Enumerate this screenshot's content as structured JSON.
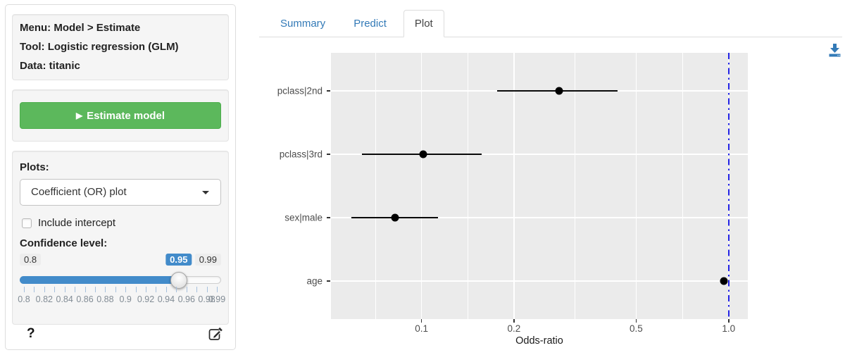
{
  "colors": {
    "accent_blue": "#428bca",
    "link_blue": "#337ab7",
    "success_green": "#5cb85c",
    "panel_bg": "#ebebeb",
    "gridline": "#ffffff",
    "reference_line_blue": "#2323e6",
    "point_black": "#000000"
  },
  "icons": {
    "play": "▶",
    "help": "?",
    "edit": "pencil-square-icon",
    "download": "download-tray-icon",
    "caret": "caret-down-icon"
  },
  "sidebar": {
    "info": {
      "menu": "Menu: Model > Estimate",
      "tool": "Tool: Logistic regression (GLM)",
      "data": "Data: titanic"
    },
    "estimate_button_label": "Estimate model",
    "plots_label": "Plots:",
    "plot_select_value": "Coefficient (OR) plot",
    "include_intercept_label": "Include intercept",
    "include_intercept_checked": false,
    "confidence_label": "Confidence level:",
    "slider": {
      "min": 0.8,
      "max": 0.99,
      "value": 0.95,
      "step": 0.01,
      "min_label": "0.8",
      "max_label": "0.99",
      "value_label": "0.95",
      "grid_labels": [
        "0.8",
        "0.82",
        "0.84",
        "0.86",
        "0.88",
        "0.9",
        "0.92",
        "0.94",
        "0.96",
        "0.98",
        "0.99"
      ]
    },
    "help_label": "?"
  },
  "tabs": [
    {
      "label": "Summary",
      "active": false
    },
    {
      "label": "Predict",
      "active": false
    },
    {
      "label": "Plot",
      "active": true
    }
  ],
  "chart_data": {
    "type": "scatter",
    "subtype": "coefficient-odds-ratio-plot",
    "title": "",
    "xlabel": "Odds-ratio",
    "x_scale": "log10",
    "xlim": [
      0.0507,
      1.155
    ],
    "x_ticks": [
      0.1,
      0.2,
      0.5,
      1.0
    ],
    "x_tick_labels": [
      "0.1",
      "0.2",
      "0.5",
      "1.0"
    ],
    "x_minor_breaks": [
      0.0707,
      0.1414,
      0.3162,
      0.7071
    ],
    "categories": [
      "pclass|2nd",
      "pclass|3rd",
      "sex|male",
      "age"
    ],
    "series": [
      {
        "name": "odds_ratio",
        "values": [
          0.28,
          0.101,
          0.082,
          0.967
        ],
        "ci_low": [
          0.176,
          0.064,
          0.059,
          0.953
        ],
        "ci_high": [
          0.436,
          0.157,
          0.113,
          0.981
        ]
      }
    ],
    "reference_line_x": 1.0,
    "legend": "none",
    "grid": true,
    "category_expand": 0.6
  }
}
